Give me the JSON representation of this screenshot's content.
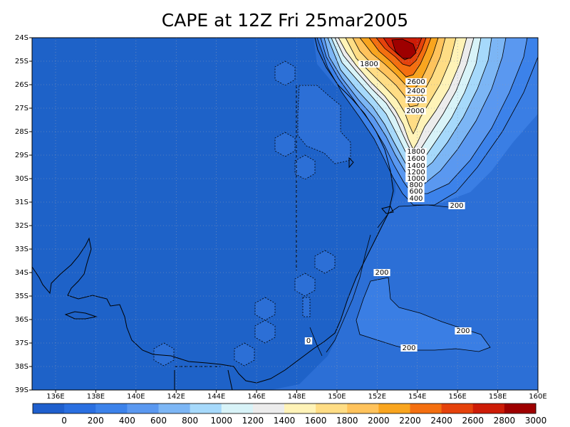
{
  "title": "CAPE at 12Z Fri 25mar2005",
  "map": {
    "lat_ticks": [
      "24S",
      "25S",
      "26S",
      "27S",
      "28S",
      "29S",
      "30S",
      "31S",
      "32S",
      "33S",
      "34S",
      "35S",
      "36S",
      "37S",
      "38S",
      "39S"
    ],
    "lon_ticks": [
      "136E",
      "138E",
      "140E",
      "142E",
      "144E",
      "146E",
      "148E",
      "150E",
      "152E",
      "154E",
      "156E",
      "158E",
      "160E"
    ],
    "contour_labels": [
      "1800",
      "2600",
      "2400",
      "2200",
      "2000",
      "1800",
      "1600",
      "1400",
      "1200",
      "1000",
      "800",
      "600",
      "400",
      "200",
      "200",
      "200",
      "200",
      "0"
    ],
    "colors": {
      "background_field": "#2c6fd6",
      "interior_field": "#1e62c8",
      "frame": "#000000",
      "grid": "#8a9ab8"
    }
  },
  "colorbar": {
    "levels": [
      "0",
      "200",
      "400",
      "600",
      "800",
      "1000",
      "1200",
      "1400",
      "1600",
      "1800",
      "2000",
      "2200",
      "2400",
      "2600",
      "2800",
      "3000"
    ],
    "colors": [
      "#1f5fcd",
      "#2a6fe0",
      "#3c82ea",
      "#5a98f0",
      "#7cb6f5",
      "#a6d9fb",
      "#d8f3f8",
      "#ececec",
      "#fff3b8",
      "#ffdd85",
      "#ffc35c",
      "#f9a51f",
      "#f46f10",
      "#e5420c",
      "#cd1c07",
      "#9e0000"
    ]
  }
}
